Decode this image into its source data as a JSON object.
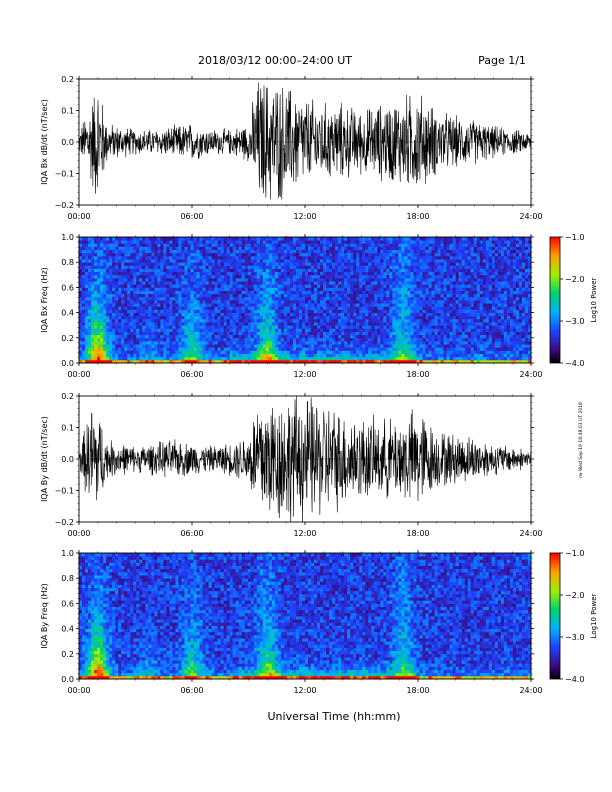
{
  "header": {
    "title": "2018/03/12   00:00–24:00 UT",
    "page": "Page 1/1"
  },
  "side_note": "rw Wed Sep 19 18:48:03 UT 2018",
  "xlabel": "Universal Time (hh:mm)",
  "chart_data": [
    {
      "type": "line",
      "ylabel": "IQA Bx dB/dt (nT/sec)",
      "ylim": [
        -0.2,
        0.2
      ],
      "yticks": [
        "0.2",
        "0.1",
        "0.0",
        "−0.1",
        "−0.2"
      ],
      "yticks_values": [
        0.2,
        0.1,
        0.0,
        -0.1,
        -0.2
      ],
      "xlim": [
        0,
        24
      ],
      "xticks": [
        "00:00",
        "06:00",
        "12:00",
        "18:00",
        "24:00"
      ],
      "color": "#000000",
      "envelope_hours": [
        0,
        1,
        1.5,
        3,
        4,
        5,
        6,
        7,
        8,
        9,
        9.5,
        10,
        11,
        12,
        13,
        14,
        15,
        16,
        17,
        18,
        19,
        20,
        21,
        22,
        23,
        24
      ],
      "envelope_amplitude": [
        0.03,
        0.2,
        0.06,
        0.04,
        0.04,
        0.05,
        0.06,
        0.04,
        0.04,
        0.06,
        0.2,
        0.2,
        0.18,
        0.14,
        0.12,
        0.12,
        0.1,
        0.12,
        0.14,
        0.16,
        0.1,
        0.08,
        0.07,
        0.05,
        0.04,
        0.03
      ]
    },
    {
      "type": "heatmap",
      "ylabel": "IQA Bx Freq (Hz)",
      "ylim": [
        0,
        1.0
      ],
      "yticks": [
        "1.0",
        "0.8",
        "0.6",
        "0.4",
        "0.2",
        "0.0"
      ],
      "yticks_values": [
        1.0,
        0.8,
        0.6,
        0.4,
        0.2,
        0.0
      ],
      "xlim": [
        0,
        24
      ],
      "xticks": [
        "00:00",
        "06:00",
        "12:00",
        "18:00",
        "24:00"
      ],
      "colorbar_label": "Log10 Power",
      "colorbar_range": [
        -4.0,
        -1.0
      ],
      "colorbar_ticks": [
        "−1.0",
        "−2.0",
        "−3.0",
        "−4.0"
      ]
    },
    {
      "type": "line",
      "ylabel": "IQA By dB/dt (nT/sec)",
      "ylim": [
        -0.2,
        0.2
      ],
      "yticks": [
        "0.2",
        "0.1",
        "0.0",
        "−0.1",
        "−0.2"
      ],
      "yticks_values": [
        0.2,
        0.1,
        0.0,
        -0.1,
        -0.2
      ],
      "xlim": [
        0,
        24
      ],
      "xticks": [
        "00:00",
        "06:00",
        "12:00",
        "18:00",
        "24:00"
      ],
      "color": "#000000",
      "envelope_hours": [
        0,
        0.8,
        1.5,
        3,
        4,
        5,
        6,
        7,
        8,
        9,
        9.5,
        10,
        11,
        12,
        13,
        14,
        15,
        16,
        17,
        18,
        19,
        20,
        21,
        22,
        23,
        24
      ],
      "envelope_amplitude": [
        0.03,
        0.2,
        0.06,
        0.04,
        0.05,
        0.06,
        0.05,
        0.04,
        0.05,
        0.08,
        0.2,
        0.2,
        0.2,
        0.2,
        0.18,
        0.15,
        0.13,
        0.12,
        0.13,
        0.16,
        0.09,
        0.08,
        0.07,
        0.05,
        0.04,
        0.03
      ]
    },
    {
      "type": "heatmap",
      "ylabel": "IQA By Freq (Hz)",
      "ylim": [
        0,
        1.0
      ],
      "yticks": [
        "1.0",
        "0.8",
        "0.6",
        "0.4",
        "0.2",
        "0.0"
      ],
      "yticks_values": [
        1.0,
        0.8,
        0.6,
        0.4,
        0.2,
        0.0
      ],
      "xlim": [
        0,
        24
      ],
      "xticks": [
        "00:00",
        "06:00",
        "12:00",
        "18:00",
        "24:00"
      ],
      "colorbar_label": "Log10 Power",
      "colorbar_range": [
        -4.0,
        -1.0
      ],
      "colorbar_ticks": [
        "−1.0",
        "−2.0",
        "−3.0",
        "−4.0"
      ]
    }
  ]
}
